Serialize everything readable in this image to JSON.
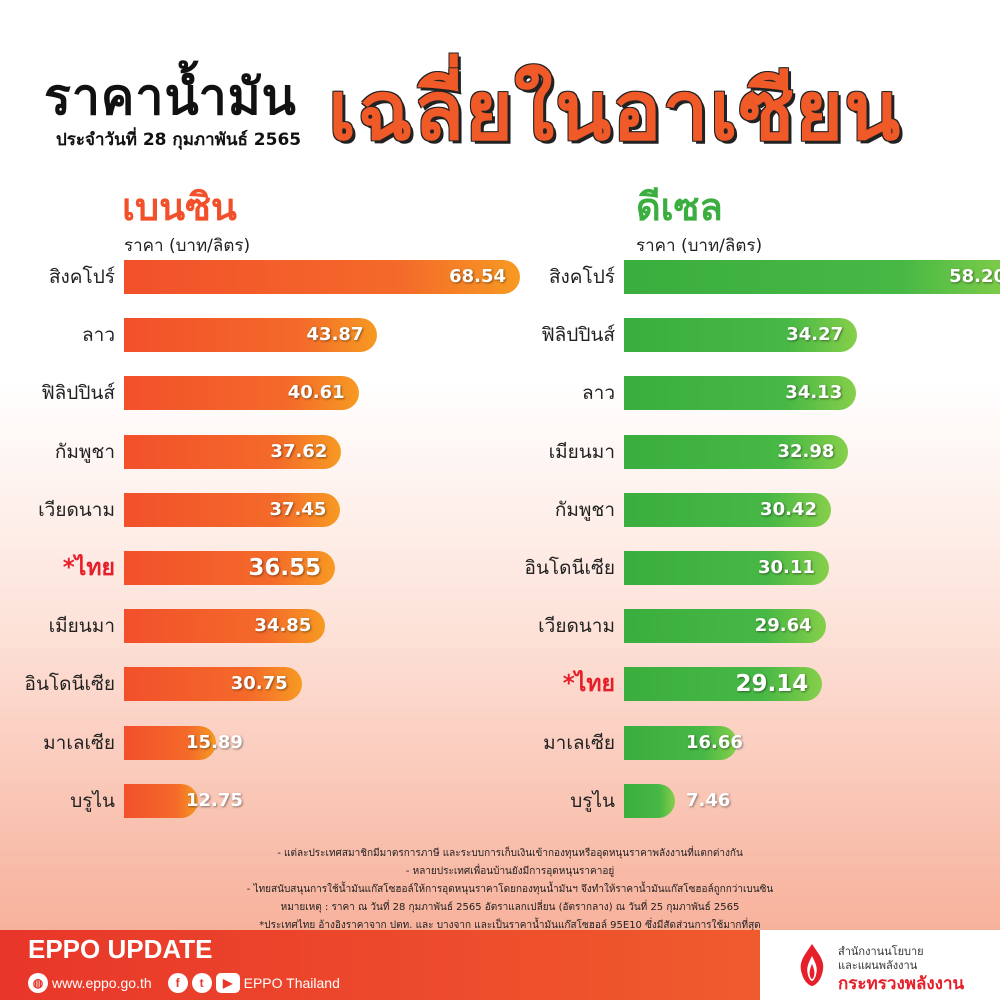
{
  "header": {
    "title_black": "ราคาน้ำมัน",
    "title_orange": "เฉลี่ยในอาเซียน",
    "date": "ประจำวันที่ 28 กุมภาพันธ์ 2565"
  },
  "petrol_panel": {
    "heading": "เบนซิน",
    "unit": "ราคา (บาท/ลิตร)",
    "color": "#f2502b"
  },
  "diesel_panel": {
    "heading": "ดีเซล",
    "unit": "ราคา (บาท/ลิตร)",
    "color": "#3aae3e"
  },
  "chart_data": [
    {
      "type": "bar",
      "orientation": "horizontal",
      "title": "เบนซิน",
      "xlabel": "ราคา (บาท/ลิตร)",
      "categories": [
        "สิงคโปร์",
        "ลาว",
        "ฟิลิปปินส์",
        "กัมพูชา",
        "เวียดนาม",
        "*ไทย",
        "เมียนมา",
        "อินโดนีเซีย",
        "มาเลเซีย",
        "บรูไน"
      ],
      "values": [
        68.54,
        43.87,
        40.61,
        37.62,
        37.45,
        36.55,
        34.85,
        30.75,
        15.89,
        12.75
      ],
      "value_labels": [
        "68.54",
        "43.87",
        "40.61",
        "37.62",
        "37.45",
        "36.55",
        "34.85",
        "30.75",
        "15.89",
        "12.75"
      ],
      "highlight_index": 5,
      "grid": false
    },
    {
      "type": "bar",
      "orientation": "horizontal",
      "title": "ดีเซล",
      "xlabel": "ราคา (บาท/ลิตร)",
      "categories": [
        "สิงคโปร์",
        "ฟิลิปปินส์",
        "ลาว",
        "เมียนมา",
        "กัมพูชา",
        "อินโดนีเซีย",
        "เวียดนาม",
        "*ไทย",
        "มาเลเซีย",
        "บรูไน"
      ],
      "values": [
        58.2,
        34.27,
        34.13,
        32.98,
        30.42,
        30.11,
        29.64,
        29.14,
        16.66,
        7.46
      ],
      "value_labels": [
        "58.20",
        "34.27",
        "34.13",
        "32.98",
        "30.42",
        "30.11",
        "29.64",
        "29.14",
        "16.66",
        "7.46"
      ],
      "highlight_index": 7,
      "grid": false
    }
  ],
  "notes": [
    "- แต่ละประเทศสมาชิกมีมาตรการภาษี และระบบการเก็บเงินเข้ากองทุนหรืออุดหนุนราคาพลังงานที่แตกต่างกัน",
    "- หลายประเทศเพื่อนบ้านยังมีการอุดหนุนราคาอยู่",
    "- ไทยสนับสนุนการใช้น้ำมันแก๊สโซฮอล์ให้การอุดหนุนราคาโดยกองทุนน้ำมันฯ จึงทำให้ราคาน้ำมันแก๊สโซฮอล์ถูกกว่าเบนซิน",
    "หมายเหตุ : ราคา ณ วันที่ 28 กุมภาพันธ์ 2565 อัตราแลกเปลี่ยน (อัตรากลาง) ณ วันที่ 25 กุมภาพันธ์ 2565",
    "*ประเทศไทย อ้างอิงราคาจาก ปตท. และ บางจาก และเป็นราคาน้ำมันแก๊สโซฮอล์ 95E10 ซึ่งมีสัดส่วนการใช้มากที่สุด"
  ],
  "footer": {
    "title": "EPPO UPDATE",
    "website": "www.eppo.go.th",
    "page_name": "EPPO Thailand",
    "icons": [
      "globe-icon",
      "facebook-icon",
      "twitter-icon",
      "youtube-icon"
    ],
    "bg_color": "#e8362a"
  },
  "logo": {
    "line1": "สำนักงานนโยบาย",
    "line2": "และแผนพลังงาน",
    "line3": "กระทรวงพลังงาน"
  }
}
